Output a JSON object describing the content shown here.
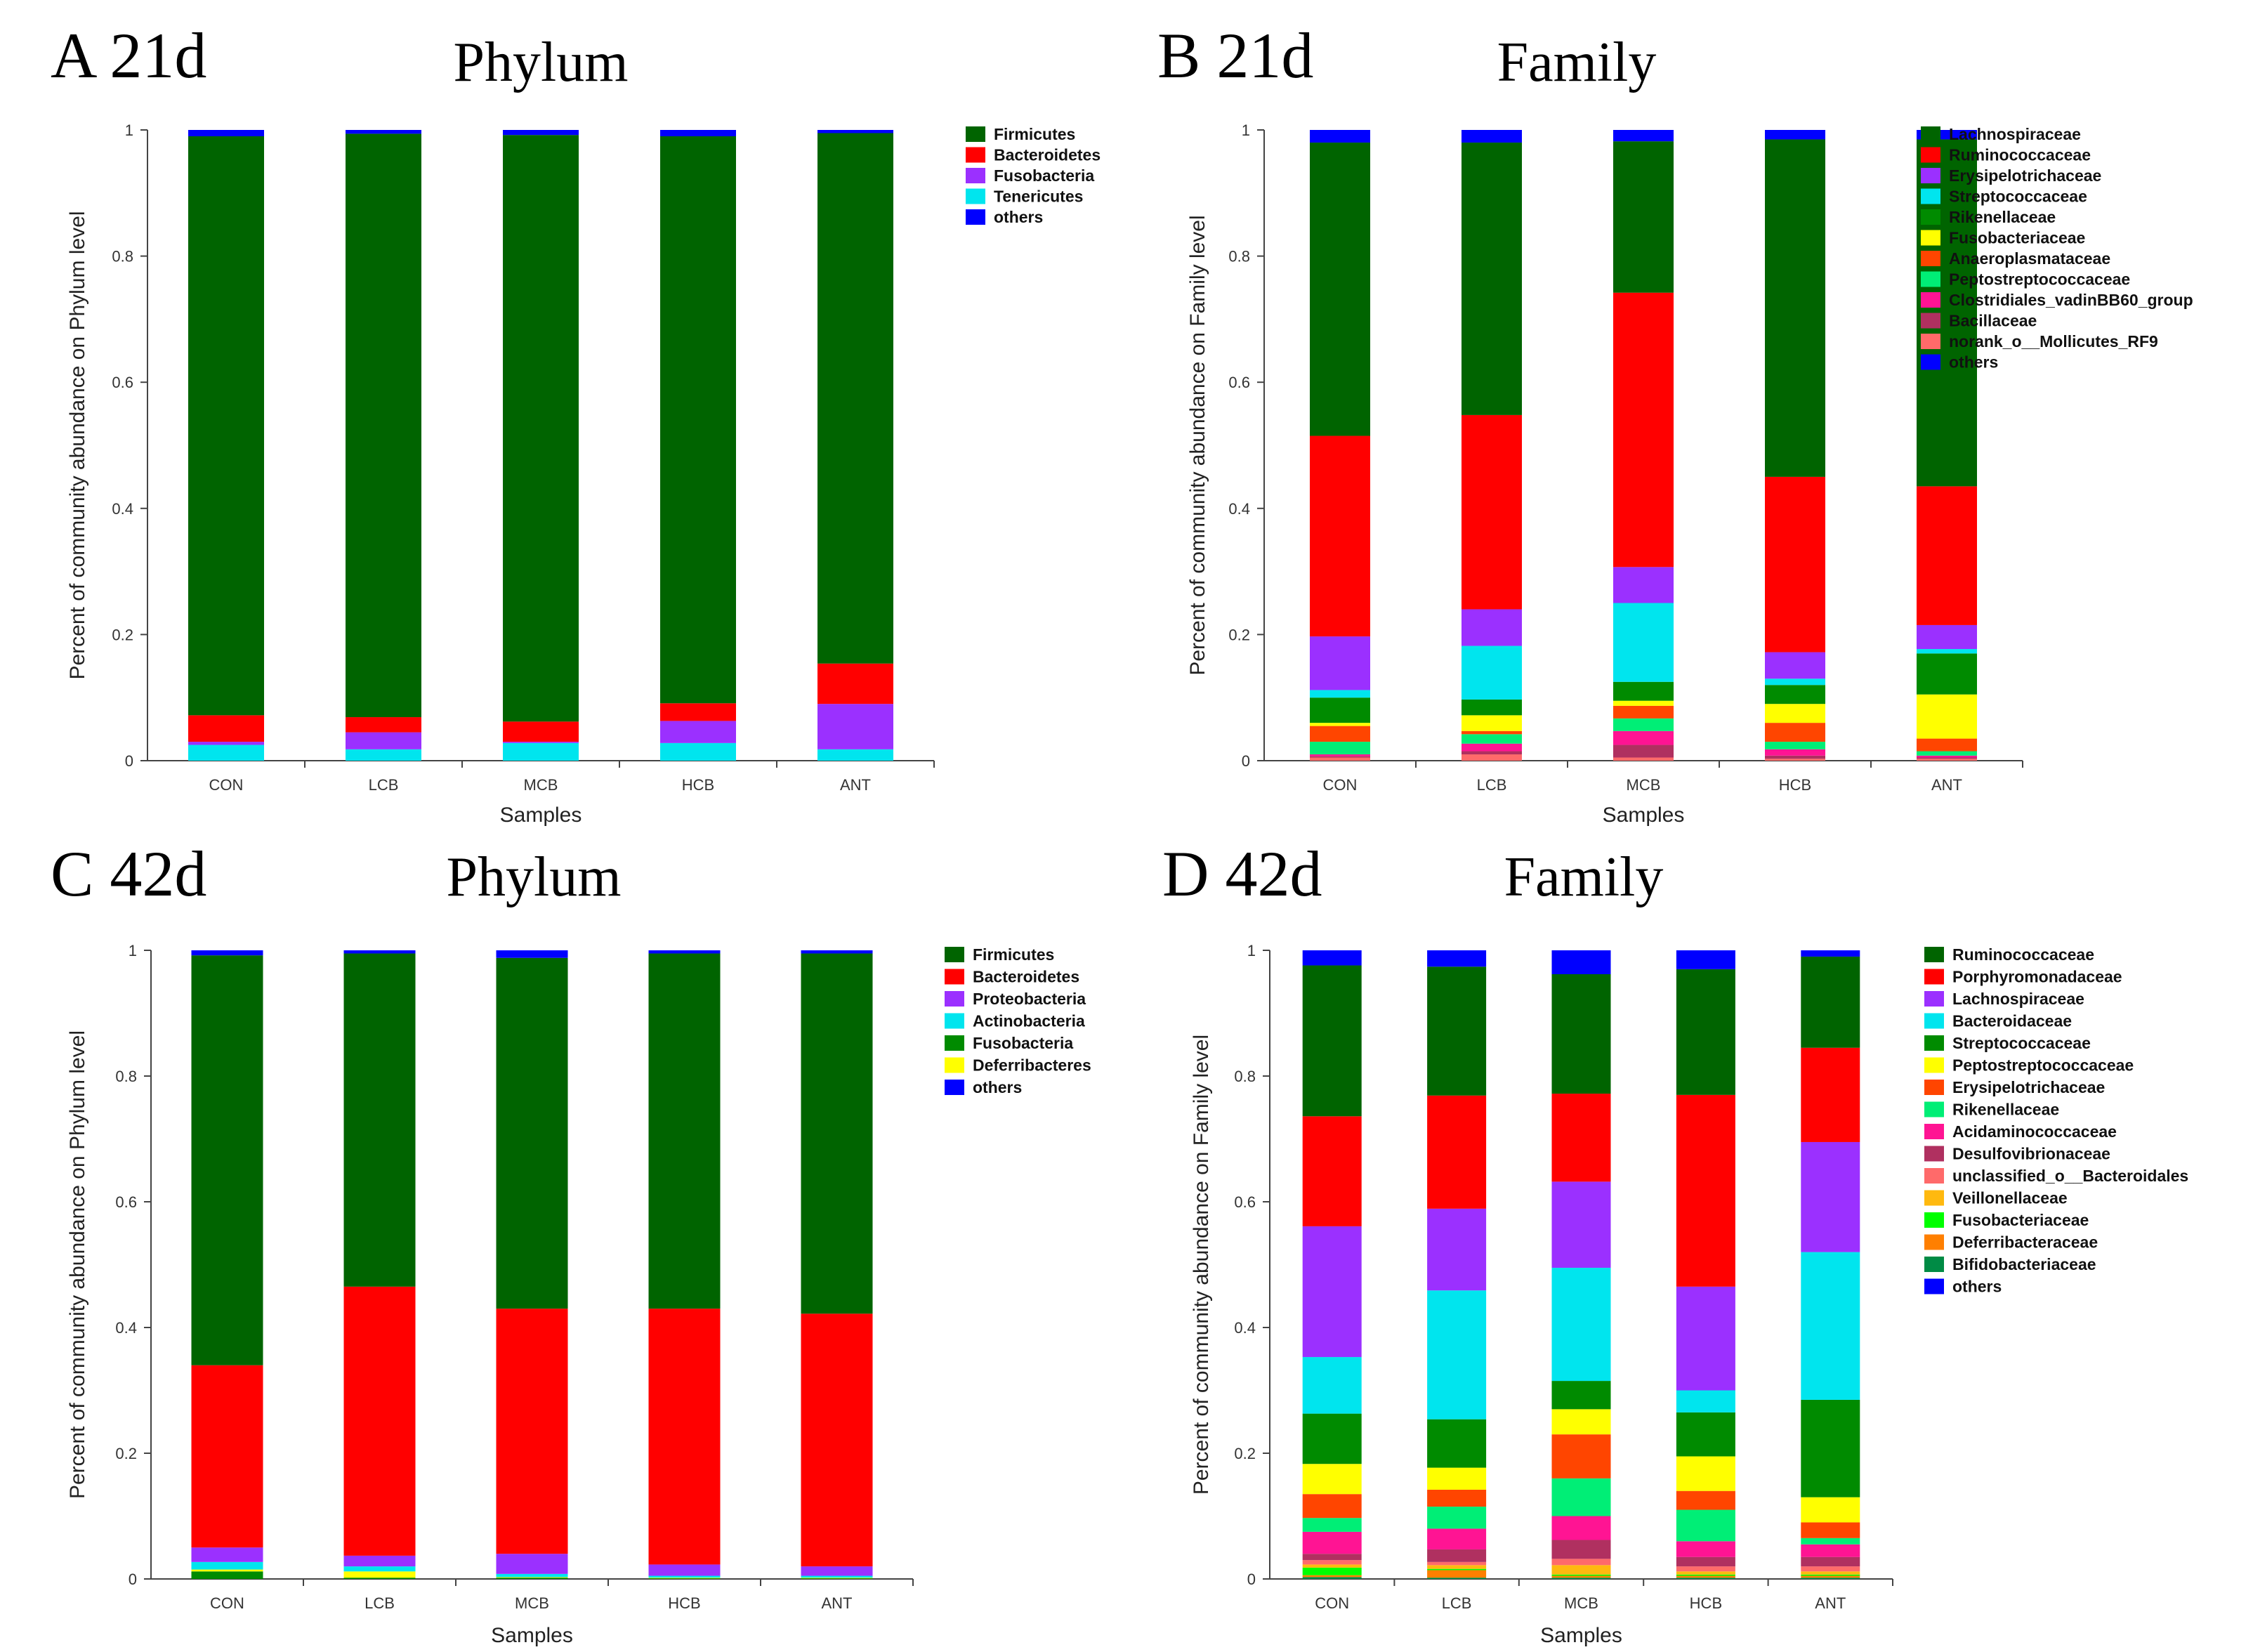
{
  "chart_data": [
    {
      "id": "A",
      "type": "bar",
      "stacked": true,
      "panel_label": "A 21d",
      "title": "Phylum",
      "xlabel": "Samples",
      "ylabel": "Percent of community abundance on Phylum level",
      "ylim": [
        0,
        1
      ],
      "yticks": [
        "0",
        "0.2",
        "0.4",
        "0.6",
        "0.8",
        "1"
      ],
      "categories": [
        "CON",
        "LCB",
        "MCB",
        "HCB",
        "ANT"
      ],
      "series": [
        {
          "name": "Tenericutes",
          "color": "#00e5ee",
          "values": [
            0.025,
            0.018,
            0.028,
            0.028,
            0.018
          ]
        },
        {
          "name": "Fusobacteria",
          "color": "#9b30ff",
          "values": [
            0.005,
            0.027,
            0.002,
            0.035,
            0.072
          ]
        },
        {
          "name": "Bacteroidetes",
          "color": "#ff0000",
          "values": [
            0.042,
            0.024,
            0.032,
            0.028,
            0.064
          ]
        },
        {
          "name": "Firmicutes",
          "color": "#006400",
          "values": [
            0.918,
            0.925,
            0.93,
            0.899,
            0.841
          ]
        },
        {
          "name": "others",
          "color": "#0000ff",
          "values": [
            0.01,
            0.006,
            0.008,
            0.01,
            0.005
          ]
        }
      ],
      "legend": [
        "Firmicutes",
        "Bacteroidetes",
        "Fusobacteria",
        "Tenericutes",
        "others"
      ]
    },
    {
      "id": "B",
      "type": "bar",
      "stacked": true,
      "panel_label": "B 21d",
      "title": "Family",
      "xlabel": "Samples",
      "ylabel": "Percent of community abundance on Family level",
      "ylim": [
        0,
        1
      ],
      "yticks": [
        "0",
        "0.2",
        "0.4",
        "0.6",
        "0.8",
        "1"
      ],
      "categories": [
        "CON",
        "LCB",
        "MCB",
        "HCB",
        "ANT"
      ],
      "series": [
        {
          "name": "norank_o__Mollicutes_RF9",
          "color": "#ff6a6a",
          "values": [
            0.005,
            0.01,
            0.005,
            0.003,
            0.003
          ]
        },
        {
          "name": "Bacillaceae",
          "color": "#b03060",
          "values": [
            0.002,
            0.005,
            0.02,
            0.005,
            0.002
          ]
        },
        {
          "name": "Clostridiales_vadinBB60_group",
          "color": "#ff1493",
          "values": [
            0.003,
            0.012,
            0.022,
            0.01,
            0.003
          ]
        },
        {
          "name": "Peptostreptococcaceae",
          "color": "#00ee76",
          "values": [
            0.02,
            0.015,
            0.02,
            0.012,
            0.007
          ]
        },
        {
          "name": "Anaeroplasmataceae",
          "color": "#ff4500",
          "values": [
            0.025,
            0.005,
            0.02,
            0.03,
            0.02
          ]
        },
        {
          "name": "Fusobacteriaceae",
          "color": "#ffff00",
          "values": [
            0.005,
            0.025,
            0.008,
            0.03,
            0.07
          ]
        },
        {
          "name": "Rikenellaceae",
          "color": "#008b00",
          "values": [
            0.04,
            0.025,
            0.03,
            0.03,
            0.065
          ]
        },
        {
          "name": "Streptococcaceae",
          "color": "#00e5ee",
          "values": [
            0.012,
            0.085,
            0.125,
            0.01,
            0.007
          ]
        },
        {
          "name": "Erysipelotrichaceae",
          "color": "#9b30ff",
          "values": [
            0.085,
            0.058,
            0.057,
            0.042,
            0.038
          ]
        },
        {
          "name": "Ruminococcaceae",
          "color": "#ff0000",
          "values": [
            0.318,
            0.308,
            0.435,
            0.278,
            0.22
          ]
        },
        {
          "name": "Lachnospiraceae",
          "color": "#006400",
          "values": [
            0.465,
            0.432,
            0.24,
            0.535,
            0.55
          ]
        },
        {
          "name": "others",
          "color": "#0000ff",
          "values": [
            0.02,
            0.02,
            0.018,
            0.015,
            0.015
          ]
        }
      ],
      "legend": [
        "Lachnospiraceae",
        "Ruminococcaceae",
        "Erysipelotrichaceae",
        "Streptococcaceae",
        "Rikenellaceae",
        "Fusobacteriaceae",
        "Anaeroplasmataceae",
        "Peptostreptococcaceae",
        "Clostridiales_vadinBB60_group",
        "Bacillaceae",
        "norank_o__Mollicutes_RF9",
        "others"
      ]
    },
    {
      "id": "C",
      "type": "bar",
      "stacked": true,
      "panel_label": "C 42d",
      "title": "Phylum",
      "xlabel": "Samples",
      "ylabel": "Percent of community abundance on Phylum level",
      "ylim": [
        0,
        1
      ],
      "yticks": [
        "0",
        "0.2",
        "0.4",
        "0.6",
        "0.8",
        "1"
      ],
      "categories": [
        "CON",
        "LCB",
        "MCB",
        "HCB",
        "ANT"
      ],
      "series": [
        {
          "name": "Fusobacteria",
          "color": "#008b00",
          "values": [
            0.012,
            0.002,
            0.002,
            0.001,
            0.001
          ]
        },
        {
          "name": "Deferribacteres",
          "color": "#ffff00",
          "values": [
            0.003,
            0.01,
            0.001,
            0.001,
            0.001
          ]
        },
        {
          "name": "Actinobacteria",
          "color": "#00e5ee",
          "values": [
            0.012,
            0.008,
            0.005,
            0.003,
            0.003
          ]
        },
        {
          "name": "Proteobacteria",
          "color": "#9b30ff",
          "values": [
            0.023,
            0.017,
            0.032,
            0.018,
            0.015
          ]
        },
        {
          "name": "Bacteroidetes",
          "color": "#ff0000",
          "values": [
            0.29,
            0.428,
            0.39,
            0.407,
            0.402
          ]
        },
        {
          "name": "Firmicutes",
          "color": "#006400",
          "values": [
            0.652,
            0.53,
            0.558,
            0.565,
            0.573
          ]
        },
        {
          "name": "others",
          "color": "#0000ff",
          "values": [
            0.008,
            0.005,
            0.012,
            0.005,
            0.005
          ]
        }
      ],
      "legend": [
        "Firmicutes",
        "Bacteroidetes",
        "Proteobacteria",
        "Actinobacteria",
        "Fusobacteria",
        "Deferribacteres",
        "others"
      ]
    },
    {
      "id": "D",
      "type": "bar",
      "stacked": true,
      "panel_label": "D 42d",
      "title": "Family",
      "xlabel": "Samples",
      "ylabel": "Percent of community abundance on Family level",
      "ylim": [
        0,
        1
      ],
      "yticks": [
        "0",
        "0.2",
        "0.4",
        "0.6",
        "0.8",
        "1"
      ],
      "categories": [
        "CON",
        "LCB",
        "MCB",
        "HCB",
        "ANT"
      ],
      "series": [
        {
          "name": "Bifidobacteriaceae",
          "color": "#008b45",
          "values": [
            0.003,
            0.002,
            0.002,
            0.002,
            0.002
          ]
        },
        {
          "name": "Deferribacteraceae",
          "color": "#ff7f00",
          "values": [
            0.003,
            0.012,
            0.003,
            0.003,
            0.003
          ]
        },
        {
          "name": "Fusobacteriaceae",
          "color": "#00ff00",
          "values": [
            0.012,
            0.002,
            0.002,
            0.002,
            0.002
          ]
        },
        {
          "name": "Veillonellaceae",
          "color": "#ffb90f",
          "values": [
            0.005,
            0.006,
            0.015,
            0.005,
            0.005
          ]
        },
        {
          "name": "unclassified_o__Bacteroidales",
          "color": "#ff6a6a",
          "values": [
            0.007,
            0.005,
            0.01,
            0.008,
            0.008
          ]
        },
        {
          "name": "Desulfovibrionaceae",
          "color": "#b03060",
          "values": [
            0.01,
            0.02,
            0.03,
            0.015,
            0.015
          ]
        },
        {
          "name": "Acidaminococcaceae",
          "color": "#ff1493",
          "values": [
            0.035,
            0.033,
            0.038,
            0.025,
            0.02
          ]
        },
        {
          "name": "Rikenellaceae",
          "color": "#00ee76",
          "values": [
            0.022,
            0.035,
            0.06,
            0.05,
            0.01
          ]
        },
        {
          "name": "Erysipelotrichaceae",
          "color": "#ff4500",
          "values": [
            0.038,
            0.027,
            0.07,
            0.03,
            0.025
          ]
        },
        {
          "name": "Peptostreptococcaceae",
          "color": "#ffff00",
          "values": [
            0.048,
            0.035,
            0.04,
            0.055,
            0.04
          ]
        },
        {
          "name": "Streptococcaceae",
          "color": "#008b00",
          "values": [
            0.08,
            0.077,
            0.045,
            0.07,
            0.155
          ]
        },
        {
          "name": "Bacteroidaceae",
          "color": "#00e5ee",
          "values": [
            0.09,
            0.205,
            0.18,
            0.035,
            0.235
          ]
        },
        {
          "name": "Lachnospiraceae",
          "color": "#9b30ff",
          "values": [
            0.208,
            0.13,
            0.137,
            0.165,
            0.175
          ]
        },
        {
          "name": "Porphyromonadaceae",
          "color": "#ff0000",
          "values": [
            0.175,
            0.18,
            0.14,
            0.305,
            0.15
          ]
        },
        {
          "name": "Ruminococcaceae",
          "color": "#006400",
          "values": [
            0.24,
            0.205,
            0.19,
            0.2,
            0.145
          ]
        },
        {
          "name": "others",
          "color": "#0000ff",
          "values": [
            0.024,
            0.026,
            0.038,
            0.03,
            0.01
          ]
        }
      ],
      "legend": [
        "Ruminococcaceae",
        "Porphyromonadaceae",
        "Lachnospiraceae",
        "Bacteroidaceae",
        "Streptococcaceae",
        "Peptostreptococcaceae",
        "Erysipelotrichaceae",
        "Rikenellaceae",
        "Acidaminococcaceae",
        "Desulfovibrionaceae",
        "unclassified_o__Bacteroidales",
        "Veillonellaceae",
        "Fusobacteriaceae",
        "Deferribacteraceae",
        "Bifidobacteriaceae",
        "others"
      ]
    }
  ]
}
